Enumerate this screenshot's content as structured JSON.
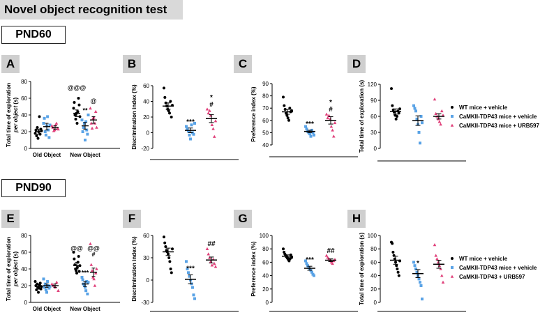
{
  "header": {
    "title": "Novel object recognition test"
  },
  "sections": [
    {
      "label": "PND60"
    },
    {
      "label": "PND90"
    }
  ],
  "panel_letters": [
    "A",
    "B",
    "C",
    "D",
    "E",
    "F",
    "G",
    "H"
  ],
  "legends": [
    {
      "entries": [
        "WT mice + vehicle",
        "CaMKII-TDP43 mice + vehicle",
        "CaMKII-TDP43 mice + URB597"
      ]
    },
    {
      "entries": [
        "WT mice + vehicle",
        "CaMKII-TDP43 mice + vehicle",
        "CaMKII-TDP43 + URB597"
      ]
    }
  ],
  "colors": {
    "wt": "#000000",
    "veh": "#5aa3e6",
    "urb": "#e0407a",
    "title_bg": "#d9d9d9",
    "letter_bg": "#cfcfcf"
  },
  "chart_data": [
    {
      "type": "scatter",
      "title": "A",
      "ylabel": "Total time of exploration per object (s)",
      "ylim": [
        0,
        80
      ],
      "yticks": [
        0,
        20,
        40,
        60,
        80
      ],
      "categories": [
        "Old Object",
        "New Object"
      ],
      "series": [
        {
          "group": "wt",
          "means": [
            20,
            42
          ],
          "sems": [
            3,
            4
          ],
          "points": [
            [
              18,
              22,
              15,
              25,
              12,
              20,
              38,
              17,
              23,
              21
            ],
            [
              48,
              55,
              40,
              35,
              42,
              30,
              44,
              60,
              52,
              38
            ]
          ]
        },
        {
          "group": "veh",
          "means": [
            26,
            27
          ],
          "sems": [
            4,
            4
          ],
          "points": [
            [
              30,
              36,
              20,
              16,
              27,
              38,
              22,
              13,
              28
            ],
            [
              34,
              20,
              25,
              30,
              10,
              32,
              22,
              17,
              40
            ]
          ]
        },
        {
          "group": "urb",
          "means": [
            25,
            34
          ],
          "sems": [
            2,
            4
          ],
          "points": [
            [
              27,
              25,
              21,
              22,
              28,
              30,
              24,
              23
            ],
            [
              48,
              30,
              24,
              36,
              37,
              30,
              44,
              25
            ]
          ]
        }
      ],
      "annotations": [
        {
          "cat": 1,
          "text": "@@@",
          "group": "wt",
          "y": 70
        },
        {
          "cat": 1,
          "text": "**",
          "group": "veh",
          "y": 43
        },
        {
          "cat": 1,
          "text": "@",
          "group": "urb",
          "y": 54
        }
      ]
    },
    {
      "type": "scatter",
      "title": "B",
      "ylabel": "Discrimination index (%)",
      "ylim": [
        -20,
        60
      ],
      "yticks": [
        -20,
        0,
        20,
        40,
        60
      ],
      "series": [
        {
          "group": "wt",
          "mean": 34,
          "sem": 4,
          "points": [
            57,
            45,
            38,
            34,
            30,
            28,
            25,
            40,
            20,
            35
          ]
        },
        {
          "group": "veh",
          "mean": 3,
          "sem": 3,
          "points": [
            8,
            5,
            2,
            -3,
            -8,
            10,
            0,
            -2,
            12
          ]
        },
        {
          "group": "urb",
          "mean": 18,
          "sem": 5,
          "points": [
            30,
            25,
            28,
            22,
            10,
            5,
            -5,
            15
          ]
        }
      ],
      "annotations": [
        {
          "group": "veh",
          "text": "***"
        },
        {
          "group": "urb",
          "text": "*"
        },
        {
          "group": "urb",
          "text": "#"
        }
      ]
    },
    {
      "type": "scatter",
      "title": "C",
      "ylabel": "Preference index (%)",
      "ylim": [
        40,
        90
      ],
      "yticks": [
        40,
        50,
        60,
        70,
        80,
        90
      ],
      "series": [
        {
          "group": "wt",
          "mean": 67,
          "sem": 2,
          "points": [
            79,
            72,
            69,
            66,
            64,
            62,
            60,
            70,
            67,
            68
          ]
        },
        {
          "group": "veh",
          "mean": 51,
          "sem": 1,
          "points": [
            55,
            53,
            51,
            50,
            49,
            47,
            52,
            50,
            48
          ]
        },
        {
          "group": "urb",
          "mean": 60,
          "sem": 3,
          "points": [
            65,
            62,
            64,
            61,
            55,
            52,
            47,
            58
          ]
        }
      ],
      "annotations": [
        {
          "group": "veh",
          "text": "***"
        },
        {
          "group": "urb",
          "text": "*"
        },
        {
          "group": "urb",
          "text": "#"
        }
      ]
    },
    {
      "type": "scatter",
      "title": "D",
      "ylabel": "Total time of exploration (s)",
      "ylim": [
        0,
        120
      ],
      "yticks": [
        0,
        30,
        60,
        90,
        120
      ],
      "series": [
        {
          "group": "wt",
          "mean": 69,
          "sem": 5,
          "points": [
            112,
            80,
            72,
            68,
            62,
            55,
            60,
            70,
            66,
            74
          ]
        },
        {
          "group": "veh",
          "mean": 52,
          "sem": 9,
          "points": [
            80,
            75,
            70,
            55,
            45,
            30,
            10,
            60,
            48
          ]
        },
        {
          "group": "urb",
          "mean": 60,
          "sem": 5,
          "points": [
            92,
            65,
            60,
            55,
            50,
            45,
            70,
            62
          ]
        }
      ]
    },
    {
      "type": "scatter",
      "title": "E",
      "ylabel": "Total time of exploration per object (s)",
      "ylim": [
        0,
        80
      ],
      "yticks": [
        0,
        20,
        40,
        60,
        80
      ],
      "categories": [
        "Old Object",
        "New Object"
      ],
      "series": [
        {
          "group": "wt",
          "means": [
            19,
            44
          ],
          "sems": [
            2,
            4
          ],
          "points": [
            [
              25,
              20,
              15,
              22,
              18,
              12,
              17,
              21,
              23,
              16,
              19
            ],
            [
              60,
              52,
              45,
              40,
              38,
              35,
              42,
              48,
              55,
              37,
              44
            ]
          ]
        },
        {
          "group": "veh",
          "means": [
            20,
            22
          ],
          "sems": [
            2,
            3
          ],
          "points": [
            [
              28,
              18,
              22,
              15,
              12,
              25,
              20,
              17,
              19
            ],
            [
              30,
              27,
              22,
              20,
              18,
              14,
              25,
              10,
              24
            ]
          ]
        },
        {
          "group": "urb",
          "means": [
            20,
            36
          ],
          "sems": [
            2,
            5
          ],
          "points": [
            [
              22,
              20,
              18,
              24,
              14
            ],
            [
              70,
              45,
              38,
              30,
              28,
              20,
              35,
              40
            ]
          ]
        }
      ],
      "annotations": [
        {
          "cat": 1,
          "text": "@@",
          "group": "wt",
          "y": 62
        },
        {
          "cat": 1,
          "text": "***",
          "group": "veh",
          "y": 33
        },
        {
          "cat": 1,
          "text": "@@",
          "group": "urb",
          "y": 62
        },
        {
          "cat": 1,
          "text": "#",
          "group": "urb",
          "y": 55
        }
      ]
    },
    {
      "type": "scatter",
      "title": "F",
      "ylabel": "Discrimination index (%)",
      "ylim": [
        -30,
        60
      ],
      "yticks": [
        -30,
        0,
        30,
        60
      ],
      "series": [
        {
          "group": "wt",
          "mean": 38,
          "sem": 5,
          "points": [
            58,
            50,
            45,
            40,
            38,
            35,
            30,
            25,
            15,
            10,
            42
          ]
        },
        {
          "group": "veh",
          "mean": 1,
          "sem": 6,
          "points": [
            25,
            15,
            10,
            5,
            0,
            -5,
            -10,
            -20,
            -25
          ]
        },
        {
          "group": "urb",
          "mean": 27,
          "sem": 4,
          "points": [
            42,
            35,
            30,
            25,
            20,
            28,
            22,
            18
          ]
        }
      ],
      "annotations": [
        {
          "group": "veh",
          "text": "***"
        },
        {
          "group": "urb",
          "text": "##"
        }
      ]
    },
    {
      "type": "scatter",
      "title": "G",
      "ylabel": "Preference index (%)",
      "ylim": [
        0,
        100
      ],
      "yticks": [
        0,
        20,
        40,
        60,
        80,
        100
      ],
      "series": [
        {
          "group": "wt",
          "mean": 69,
          "sem": 2,
          "points": [
            80,
            75,
            72,
            70,
            68,
            66,
            64,
            62,
            65,
            71,
            67
          ]
        },
        {
          "group": "veh",
          "mean": 51,
          "sem": 3,
          "points": [
            62,
            58,
            55,
            52,
            50,
            48,
            45,
            42,
            40
          ]
        },
        {
          "group": "urb",
          "mean": 63,
          "sem": 2,
          "points": [
            70,
            67,
            65,
            63,
            60,
            58,
            62,
            64
          ]
        }
      ],
      "annotations": [
        {
          "group": "veh",
          "text": "***"
        },
        {
          "group": "urb",
          "text": "##"
        }
      ]
    },
    {
      "type": "scatter",
      "title": "H",
      "ylabel": "Total time of exploration (s)",
      "ylim": [
        0,
        100
      ],
      "yticks": [
        0,
        20,
        40,
        60,
        80,
        100
      ],
      "series": [
        {
          "group": "wt",
          "mean": 63,
          "sem": 6,
          "points": [
            90,
            88,
            75,
            70,
            65,
            60,
            55,
            50,
            45,
            40,
            62
          ]
        },
        {
          "group": "veh",
          "mean": 43,
          "sem": 6,
          "points": [
            60,
            55,
            50,
            45,
            40,
            35,
            30,
            25,
            5
          ]
        },
        {
          "group": "urb",
          "mean": 57,
          "sem": 6,
          "points": [
            86,
            70,
            65,
            60,
            55,
            50,
            40,
            30
          ]
        }
      ],
      "annotations": [
        {
          "group": "veh",
          "text": "*"
        }
      ]
    }
  ]
}
